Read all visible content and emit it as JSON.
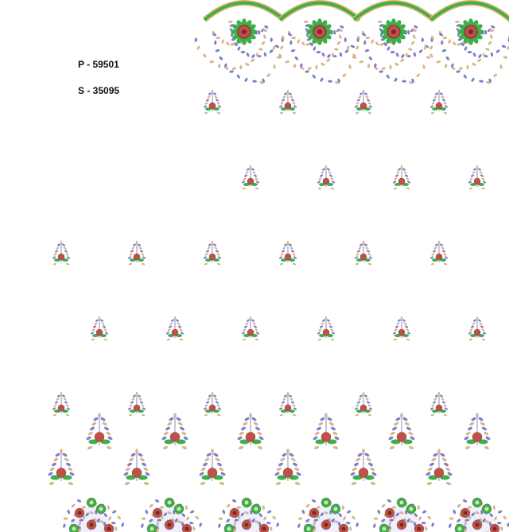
{
  "labels": {
    "p_code": "P - 59501",
    "s_code": "S - 35095"
  },
  "colors": {
    "leaf_blue": "#7b7fd0",
    "leaf_tan": "#dcb58a",
    "flower_red": "#c0504a",
    "leaf_green": "#3fae4a",
    "border_gold": "#d9b36a",
    "stem": "#6a6fb8"
  }
}
